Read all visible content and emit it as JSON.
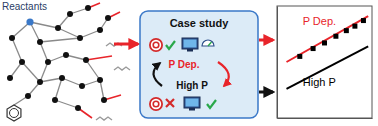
{
  "diagram": {
    "network_label": "Reactants",
    "case_study": {
      "title": "Case study",
      "upper_label": "P Dep.",
      "lower_label": "High P"
    }
  },
  "chart_data": {
    "type": "line",
    "xlim": [
      0,
      10
    ],
    "ylim": [
      0,
      10
    ],
    "tick_labels": false,
    "grid": false,
    "series": [
      {
        "name": "P Dep.",
        "color": "#e8242a",
        "type": "line",
        "x": [
          1,
          9.6
        ],
        "values": [
          5.0,
          9.1
        ]
      },
      {
        "name": "High P",
        "color": "#000000",
        "type": "line",
        "x": [
          1,
          9.6
        ],
        "values": [
          2.6,
          6.4
        ]
      },
      {
        "color": "#000000",
        "type": "scatter",
        "marker": "square",
        "x": [
          2.4,
          3.8,
          5.0,
          6.2,
          7.3,
          8.2,
          9.1
        ],
        "values": [
          5.5,
          6.2,
          6.7,
          7.3,
          7.8,
          8.2,
          8.7
        ]
      }
    ]
  }
}
